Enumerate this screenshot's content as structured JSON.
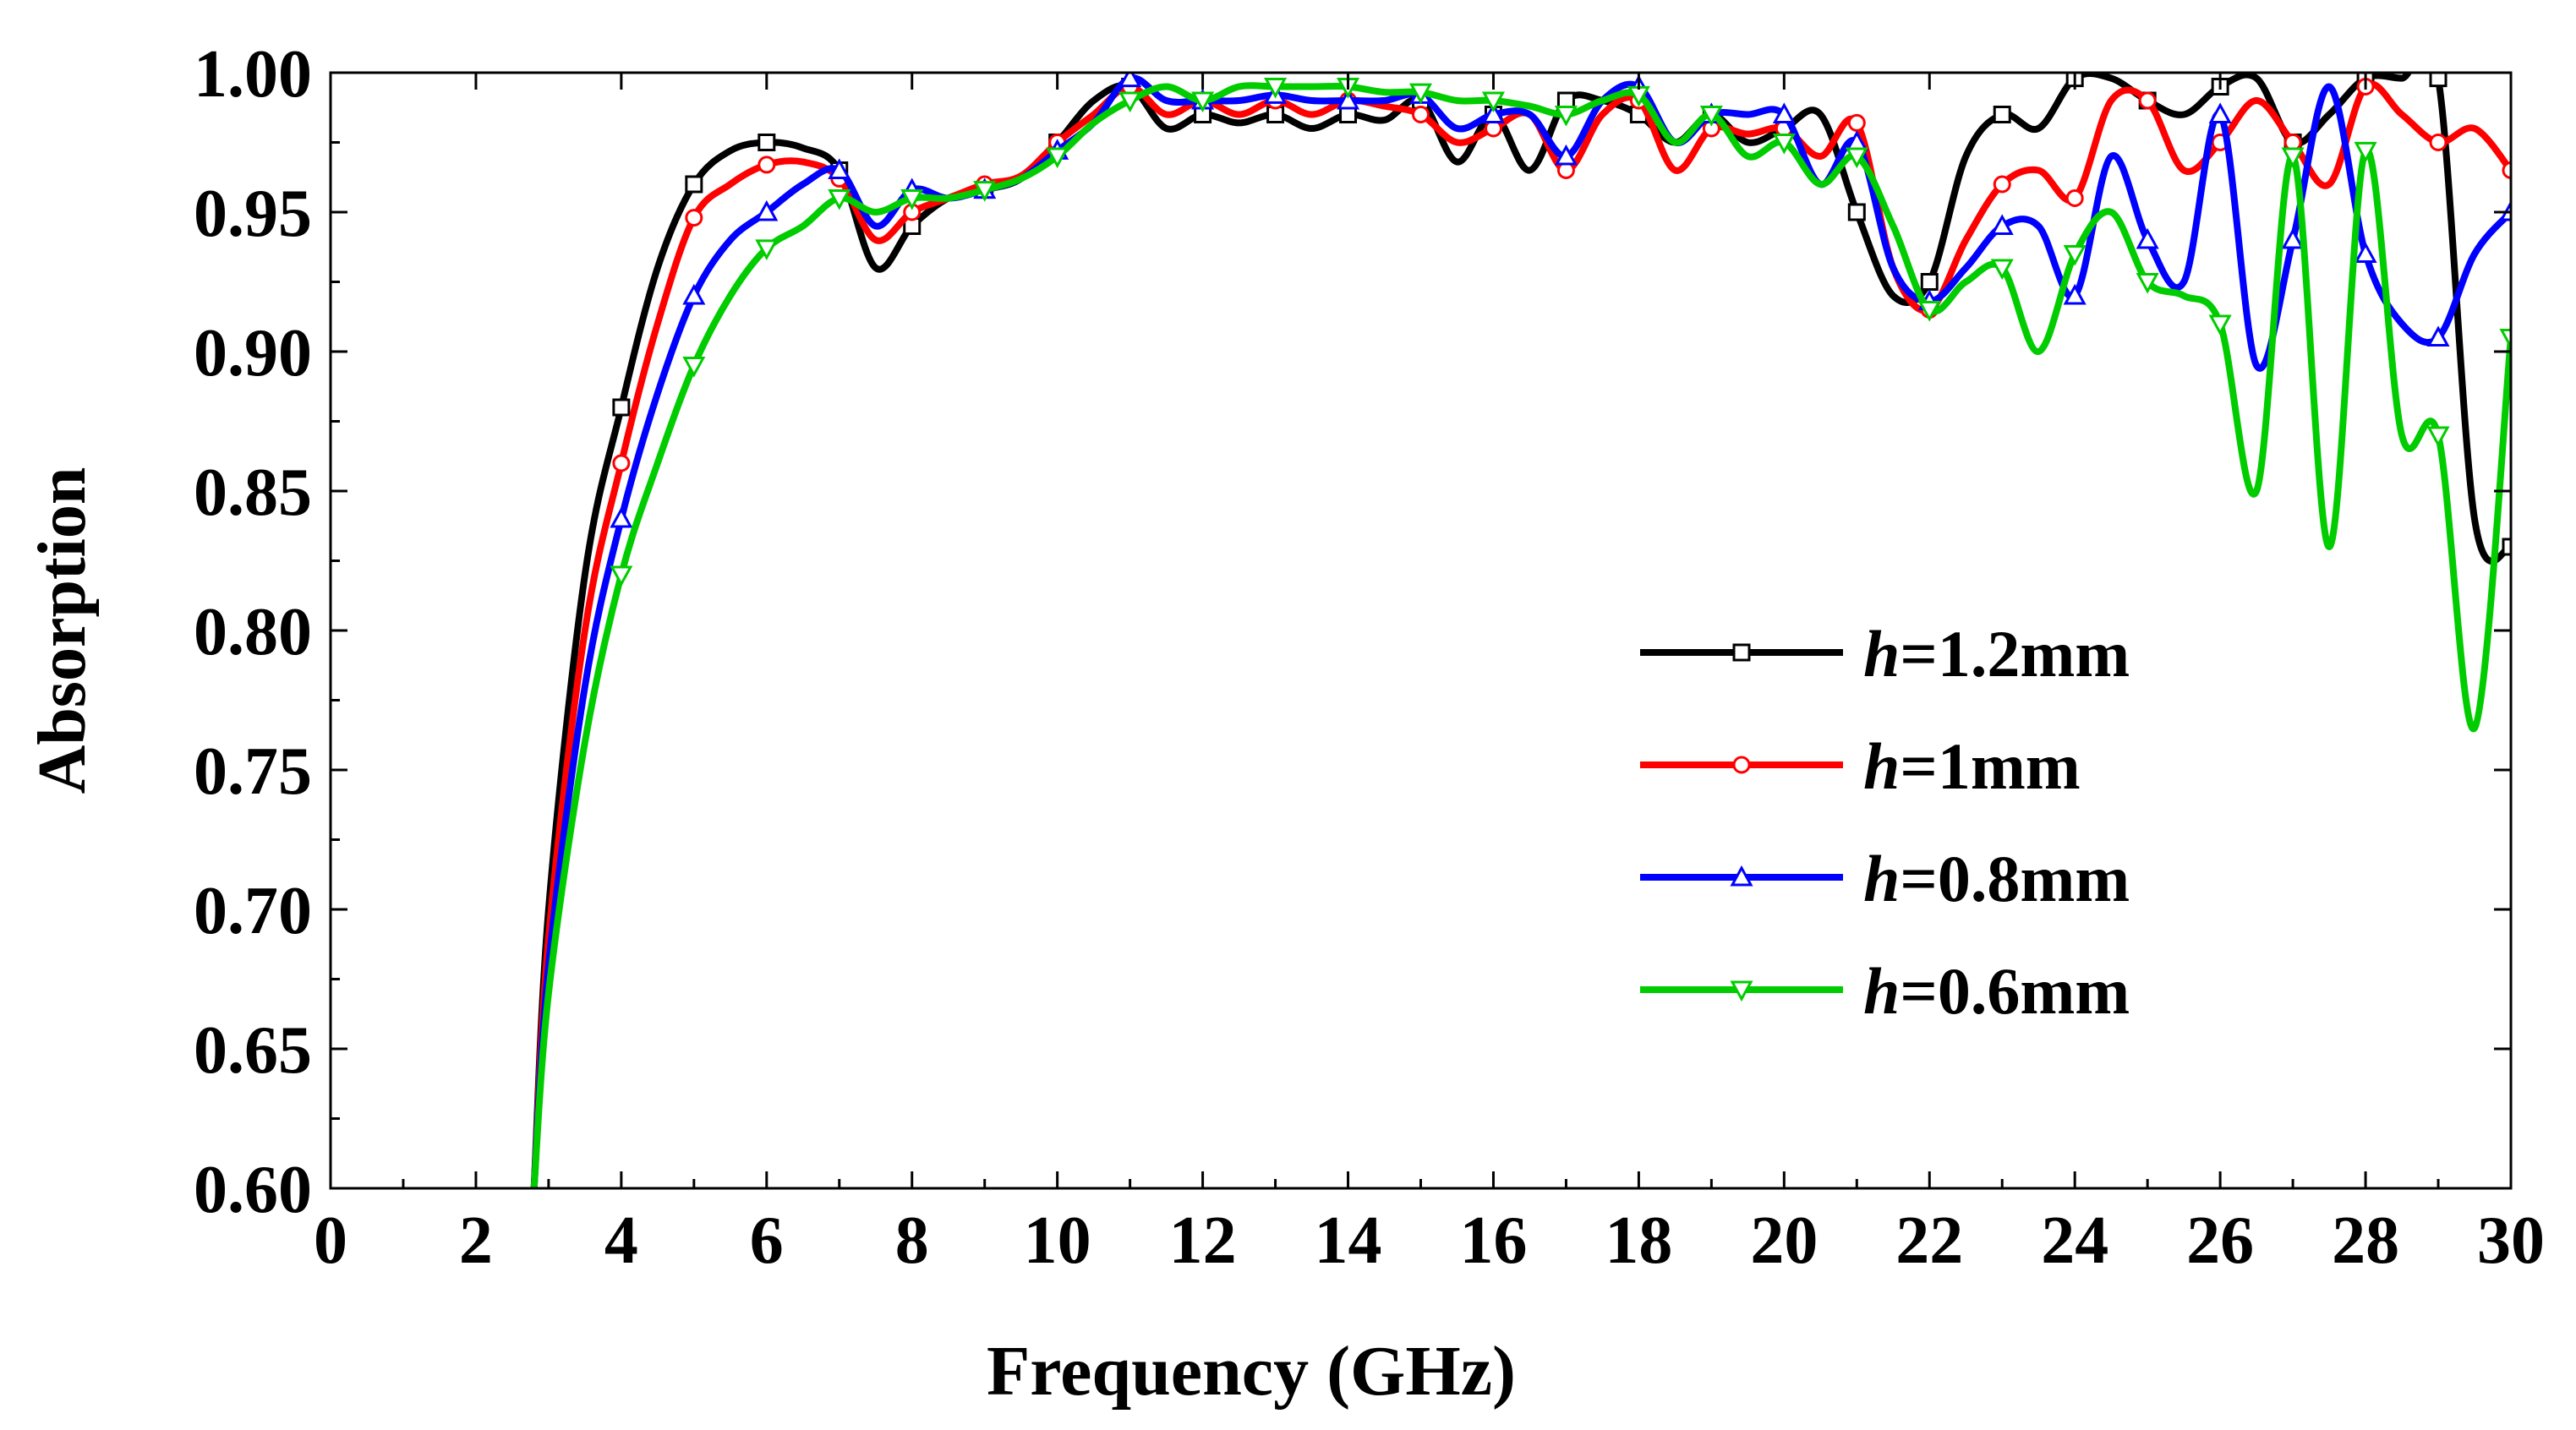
{
  "chart_data": {
    "type": "line",
    "title": "",
    "xlabel": "Frequency (GHz)",
    "ylabel": "Absorption",
    "xlim": [
      0,
      30
    ],
    "ylim": [
      0.6,
      1.0
    ],
    "xticks": [
      "0",
      "2",
      "4",
      "6",
      "8",
      "10",
      "12",
      "14",
      "16",
      "18",
      "20",
      "22",
      "24",
      "26",
      "28",
      "30"
    ],
    "yticks": [
      "0.60",
      "0.65",
      "0.70",
      "0.75",
      "0.80",
      "0.85",
      "0.90",
      "0.95",
      "1.00"
    ],
    "legend": {
      "placement": "center-right",
      "prefix": "h",
      "labels": [
        "=1.2mm",
        "=1mm",
        "=0.8mm",
        "=0.6mm"
      ]
    },
    "series": [
      {
        "name": "h=1.2mm",
        "color": "#000000",
        "marker": "square",
        "x": [
          2.8,
          3.0,
          3.5,
          4.0,
          4.5,
          5.0,
          5.5,
          6.0,
          6.5,
          7.0,
          7.5,
          8.0,
          8.5,
          9.0,
          9.5,
          10.0,
          10.5,
          11.0,
          11.5,
          12.0,
          12.5,
          13.0,
          13.5,
          14.0,
          14.5,
          15.0,
          15.5,
          16.0,
          16.5,
          17.0,
          17.5,
          18.0,
          18.5,
          19.0,
          19.5,
          20.0,
          20.5,
          21.0,
          21.5,
          22.0,
          22.5,
          23.0,
          23.5,
          24.0,
          24.5,
          25.0,
          25.5,
          26.0,
          26.5,
          27.0,
          27.5,
          28.0,
          28.5,
          29.0,
          29.5,
          30.0
        ],
        "values": [
          0.6,
          0.7,
          0.82,
          0.88,
          0.93,
          0.96,
          0.972,
          0.975,
          0.973,
          0.965,
          0.93,
          0.945,
          0.955,
          0.958,
          0.962,
          0.975,
          0.99,
          0.995,
          0.98,
          0.985,
          0.982,
          0.985,
          0.98,
          0.985,
          0.983,
          0.99,
          0.968,
          0.985,
          0.965,
          0.99,
          0.99,
          0.985,
          0.975,
          0.985,
          0.975,
          0.98,
          0.985,
          0.95,
          0.92,
          0.925,
          0.97,
          0.985,
          0.98,
          0.998,
          0.998,
          0.99,
          0.985,
          0.995,
          0.998,
          0.975,
          0.985,
          0.998,
          0.998,
          0.998,
          0.84,
          0.83
        ]
      },
      {
        "name": "h=1mm",
        "color": "#ff0000",
        "marker": "circle",
        "x": [
          2.8,
          3.0,
          3.5,
          4.0,
          4.5,
          5.0,
          5.5,
          6.0,
          6.5,
          7.0,
          7.5,
          8.0,
          8.5,
          9.0,
          9.5,
          10.0,
          10.5,
          11.0,
          11.5,
          12.0,
          12.5,
          13.0,
          13.5,
          14.0,
          14.5,
          15.0,
          15.5,
          16.0,
          16.5,
          17.0,
          17.5,
          18.0,
          18.5,
          19.0,
          19.5,
          20.0,
          20.5,
          21.0,
          21.5,
          22.0,
          22.5,
          23.0,
          23.5,
          24.0,
          24.5,
          25.0,
          25.5,
          26.0,
          26.5,
          27.0,
          27.5,
          28.0,
          28.5,
          29.0,
          29.5,
          30.0
        ],
        "values": [
          0.6,
          0.69,
          0.8,
          0.86,
          0.91,
          0.948,
          0.96,
          0.967,
          0.968,
          0.962,
          0.94,
          0.95,
          0.955,
          0.96,
          0.963,
          0.975,
          0.985,
          0.995,
          0.985,
          0.99,
          0.985,
          0.99,
          0.985,
          0.99,
          0.988,
          0.985,
          0.975,
          0.98,
          0.985,
          0.965,
          0.985,
          0.99,
          0.965,
          0.98,
          0.978,
          0.98,
          0.97,
          0.982,
          0.93,
          0.915,
          0.94,
          0.96,
          0.965,
          0.955,
          0.99,
          0.99,
          0.965,
          0.975,
          0.99,
          0.975,
          0.96,
          0.995,
          0.985,
          0.975,
          0.98,
          0.965
        ]
      },
      {
        "name": "h=0.8mm",
        "color": "#0000ff",
        "marker": "triangle-up",
        "x": [
          2.8,
          3.0,
          3.5,
          4.0,
          4.5,
          5.0,
          5.5,
          6.0,
          6.5,
          7.0,
          7.5,
          8.0,
          8.5,
          9.0,
          9.5,
          10.0,
          10.5,
          11.0,
          11.5,
          12.0,
          12.5,
          13.0,
          13.5,
          14.0,
          14.5,
          15.0,
          15.5,
          16.0,
          16.5,
          17.0,
          17.5,
          18.0,
          18.5,
          19.0,
          19.5,
          20.0,
          20.5,
          21.0,
          21.5,
          22.0,
          22.5,
          23.0,
          23.5,
          24.0,
          24.5,
          25.0,
          25.5,
          26.0,
          26.5,
          27.0,
          27.5,
          28.0,
          28.5,
          29.0,
          29.5,
          30.0
        ],
        "values": [
          0.6,
          0.68,
          0.78,
          0.84,
          0.885,
          0.92,
          0.94,
          0.95,
          0.96,
          0.965,
          0.945,
          0.958,
          0.955,
          0.958,
          0.962,
          0.972,
          0.982,
          0.998,
          0.99,
          0.99,
          0.99,
          0.992,
          0.99,
          0.99,
          0.99,
          0.992,
          0.98,
          0.985,
          0.985,
          0.97,
          0.99,
          0.995,
          0.975,
          0.985,
          0.985,
          0.985,
          0.96,
          0.975,
          0.93,
          0.918,
          0.93,
          0.945,
          0.945,
          0.92,
          0.97,
          0.94,
          0.925,
          0.985,
          0.895,
          0.94,
          0.995,
          0.935,
          0.91,
          0.905,
          0.935,
          0.95
        ]
      },
      {
        "name": "h=0.6mm",
        "color": "#00cc00",
        "marker": "triangle-down",
        "x": [
          2.8,
          3.0,
          3.5,
          4.0,
          4.5,
          5.0,
          5.5,
          6.0,
          6.5,
          7.0,
          7.5,
          8.0,
          8.5,
          9.0,
          9.5,
          10.0,
          10.5,
          11.0,
          11.5,
          12.0,
          12.5,
          13.0,
          13.5,
          14.0,
          14.5,
          15.0,
          15.5,
          16.0,
          16.5,
          17.0,
          17.5,
          18.0,
          18.5,
          19.0,
          19.5,
          20.0,
          20.5,
          21.0,
          21.5,
          22.0,
          22.5,
          23.0,
          23.5,
          24.0,
          24.5,
          25.0,
          25.5,
          26.0,
          26.5,
          27.0,
          27.5,
          28.0,
          28.5,
          29.0,
          29.5,
          30.0
        ],
        "values": [
          0.6,
          0.67,
          0.76,
          0.82,
          0.86,
          0.895,
          0.92,
          0.937,
          0.945,
          0.955,
          0.95,
          0.955,
          0.955,
          0.958,
          0.962,
          0.97,
          0.982,
          0.99,
          0.995,
          0.99,
          0.995,
          0.995,
          0.995,
          0.995,
          0.993,
          0.993,
          0.99,
          0.99,
          0.988,
          0.985,
          0.99,
          0.992,
          0.975,
          0.985,
          0.97,
          0.975,
          0.96,
          0.97,
          0.945,
          0.915,
          0.925,
          0.93,
          0.9,
          0.935,
          0.95,
          0.925,
          0.92,
          0.91,
          0.85,
          0.97,
          0.83,
          0.972,
          0.87,
          0.87,
          0.765,
          0.905
        ]
      }
    ]
  }
}
